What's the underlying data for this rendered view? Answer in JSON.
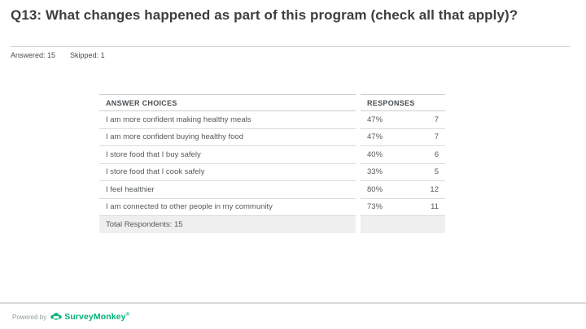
{
  "slide": {
    "title": "Q13: What changes happened as part of this program (check all that apply)?",
    "meta": {
      "answered": "Answered: 15",
      "skipped": "Skipped: 1"
    }
  },
  "table": {
    "headers": {
      "answer_choices": "ANSWER CHOICES",
      "responses": "RESPONSES"
    },
    "rows": [
      {
        "label": "I am more confident making healthy meals",
        "percent": "47%",
        "count": "7"
      },
      {
        "label": "I am more confident buying healthy food",
        "percent": "47%",
        "count": "7"
      },
      {
        "label": "I store food that I buy safely",
        "percent": "40%",
        "count": "6"
      },
      {
        "label": "I store food that I cook safely",
        "percent": "33%",
        "count": "5"
      },
      {
        "label": "I feel healthier",
        "percent": "80%",
        "count": "12"
      },
      {
        "label": "I am connected to other people in my community",
        "percent": "73%",
        "count": "11"
      }
    ],
    "footer": "Total Respondents: 15"
  },
  "footer": {
    "powered_by": "Powered by",
    "brand": "SurveyMonkey",
    "trademark": "®",
    "brand_color": "#00b277"
  },
  "chart_data": {
    "type": "table",
    "title": "Q13: What changes happened as part of this program (check all that apply)?",
    "answered": 15,
    "skipped": 1,
    "columns": [
      "ANSWER CHOICES",
      "RESPONSES PERCENT",
      "RESPONSES COUNT"
    ],
    "rows": [
      [
        "I am more confident making healthy meals",
        47,
        7
      ],
      [
        "I am more confident buying healthy food",
        47,
        7
      ],
      [
        "I store food that I buy safely",
        40,
        6
      ],
      [
        "I store food that I cook safely",
        33,
        5
      ],
      [
        "I feel healthier",
        80,
        12
      ],
      [
        "I am connected to other people in my community",
        73,
        11
      ]
    ],
    "total_respondents": 15
  }
}
